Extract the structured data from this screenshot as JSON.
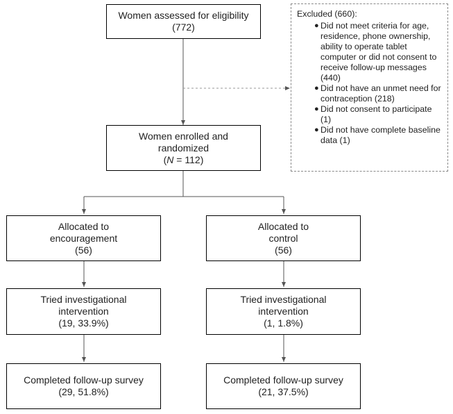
{
  "nodes": {
    "assessed": {
      "label": "Women assessed for eligibility",
      "count": "(772)"
    },
    "enrolled": {
      "label1": "Women enrolled and",
      "label2": "randomized",
      "n_var": "N",
      "n_rest": " = 112)"
    },
    "alloc_enc": {
      "label1": "Allocated to",
      "label2": "encouragement",
      "count": "(56)"
    },
    "alloc_ctl": {
      "label1": "Allocated to",
      "label2": "control",
      "count": "(56)"
    },
    "tried_enc": {
      "label1": "Tried investigational",
      "label2": "intervention",
      "count": "(19, 33.9%)"
    },
    "tried_ctl": {
      "label1": "Tried investigational",
      "label2": "intervention",
      "count": "(1, 1.8%)"
    },
    "done_enc": {
      "label": "Completed follow-up survey",
      "count": "(29, 51.8%)"
    },
    "done_ctl": {
      "label": "Completed follow-up survey",
      "count": "(21, 37.5%)"
    }
  },
  "excluded": {
    "title": "Excluded (660):",
    "items": [
      [
        "Did not meet criteria for",
        "age, residence, phone",
        "ownership, ability to",
        "operate tablet computer or",
        "did not consent to receive",
        "follow-up messages (440)"
      ],
      [
        "Did not have an unmet",
        "need for contraception",
        "(218)"
      ],
      [
        "Did not consent to",
        "participate (1)"
      ],
      [
        "Did not have complete",
        "baseline data (1)"
      ]
    ]
  }
}
